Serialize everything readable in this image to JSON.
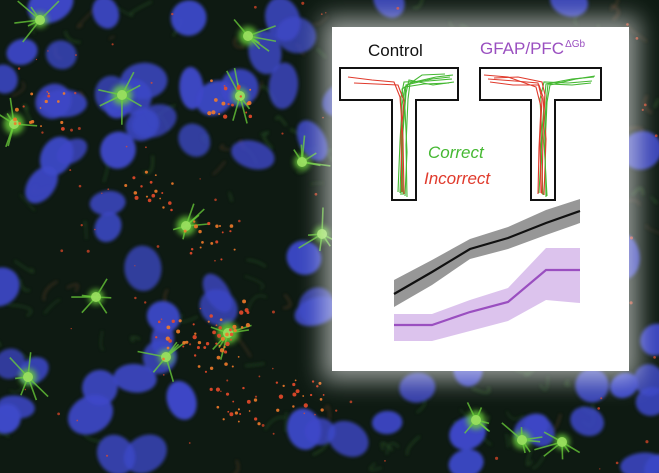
{
  "figure": {
    "control_label": "Control",
    "gfap_label_main": "GFAP/PFC",
    "gfap_label_sup": "ΔGb",
    "correct_label": "Correct",
    "incorrect_label": "Incorrect"
  },
  "colors": {
    "background": "#0c1410",
    "nuclei": "#3d48c8",
    "astrocytes_green": "#6bd03a",
    "puncta_red": "#e84a2a",
    "control_line": "#111111",
    "control_band": "#8c8c8c",
    "gfap_line": "#9a4fc0",
    "gfap_band": "#d6b8ea",
    "correct_trace": "#45b832",
    "incorrect_trace": "#e03a2c"
  }
}
